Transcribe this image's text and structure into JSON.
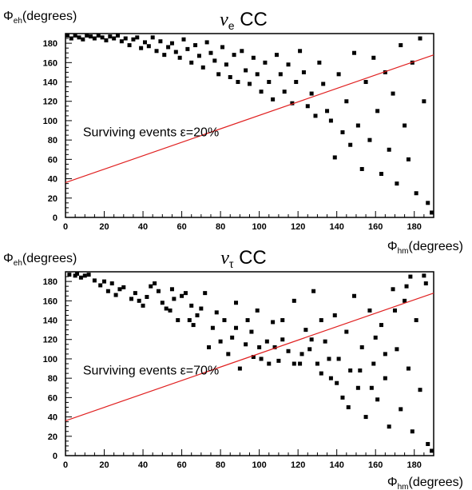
{
  "chart_data": [
    {
      "type": "scatter",
      "title": "ν_e CC",
      "xlabel": "Φ_hm(degrees)",
      "ylabel": "Φ_eh(degrees)",
      "xlim": [
        0,
        190
      ],
      "ylim": [
        0,
        190
      ],
      "x_ticks": [
        0,
        20,
        40,
        60,
        80,
        100,
        120,
        140,
        160,
        180
      ],
      "y_ticks": [
        0,
        20,
        40,
        60,
        80,
        100,
        120,
        140,
        160,
        180
      ],
      "annotation": "Surviving events ε=20%",
      "cut_line": {
        "x": [
          0,
          190
        ],
        "y": [
          36,
          168
        ],
        "color": "#e02020"
      },
      "marker_color": "#000000",
      "series": [
        {
          "points": [
            [
              1,
              188
            ],
            [
              3,
              185
            ],
            [
              5,
              188
            ],
            [
              7,
              186
            ],
            [
              9,
              184
            ],
            [
              11,
              188
            ],
            [
              13,
              187
            ],
            [
              15,
              185
            ],
            [
              17,
              188
            ],
            [
              19,
              186
            ],
            [
              21,
              183
            ],
            [
              23,
              187
            ],
            [
              25,
              185
            ],
            [
              27,
              188
            ],
            [
              29,
              182
            ],
            [
              31,
              185
            ],
            [
              33,
              178
            ],
            [
              35,
              184
            ],
            [
              37,
              186
            ],
            [
              39,
              175
            ],
            [
              41,
              181
            ],
            [
              43,
              177
            ],
            [
              45,
              186
            ],
            [
              47,
              172
            ],
            [
              49,
              182
            ],
            [
              51,
              168
            ],
            [
              53,
              176
            ],
            [
              55,
              180
            ],
            [
              57,
              171
            ],
            [
              59,
              165
            ],
            [
              61,
              184
            ],
            [
              63,
              174
            ],
            [
              65,
              160
            ],
            [
              67,
              178
            ],
            [
              69,
              167
            ],
            [
              71,
              155
            ],
            [
              73,
              181
            ],
            [
              75,
              170
            ],
            [
              77,
              162
            ],
            [
              79,
              148
            ],
            [
              81,
              176
            ],
            [
              83,
              158
            ],
            [
              85,
              145
            ],
            [
              87,
              168
            ],
            [
              89,
              140
            ],
            [
              91,
              172
            ],
            [
              93,
              152
            ],
            [
              95,
              138
            ],
            [
              97,
              165
            ],
            [
              99,
              148
            ],
            [
              101,
              130
            ],
            [
              103,
              160
            ],
            [
              105,
              140
            ],
            [
              107,
              122
            ],
            [
              109,
              168
            ],
            [
              111,
              148
            ],
            [
              113,
              130
            ],
            [
              115,
              158
            ],
            [
              117,
              118
            ],
            [
              119,
              140
            ],
            [
              121,
              172
            ],
            [
              123,
              150
            ],
            [
              125,
              115
            ],
            [
              127,
              128
            ],
            [
              129,
              105
            ],
            [
              131,
              160
            ],
            [
              133,
              138
            ],
            [
              135,
              110
            ],
            [
              137,
              100
            ],
            [
              139,
              62
            ],
            [
              141,
              148
            ],
            [
              143,
              88
            ],
            [
              145,
              120
            ],
            [
              147,
              75
            ],
            [
              149,
              170
            ],
            [
              151,
              95
            ],
            [
              153,
              50
            ],
            [
              155,
              140
            ],
            [
              157,
              80
            ],
            [
              159,
              165
            ],
            [
              161,
              110
            ],
            [
              163,
              45
            ],
            [
              165,
              150
            ],
            [
              167,
              70
            ],
            [
              169,
              128
            ],
            [
              171,
              35
            ],
            [
              173,
              178
            ],
            [
              175,
              95
            ],
            [
              177,
              60
            ],
            [
              179,
              160
            ],
            [
              181,
              25
            ],
            [
              183,
              185
            ],
            [
              185,
              120
            ],
            [
              187,
              15
            ],
            [
              189,
              5
            ]
          ]
        }
      ]
    },
    {
      "type": "scatter",
      "title": "ν_τ CC",
      "xlabel": "Φ_hm(degrees)",
      "ylabel": "Φ_eh(degrees)",
      "xlim": [
        0,
        190
      ],
      "ylim": [
        0,
        190
      ],
      "x_ticks": [
        0,
        20,
        40,
        60,
        80,
        100,
        120,
        140,
        160,
        180
      ],
      "y_ticks": [
        0,
        20,
        40,
        60,
        80,
        100,
        120,
        140,
        160,
        180
      ],
      "annotation": "Surviving events ε=70%",
      "cut_line": {
        "x": [
          0,
          190
        ],
        "y": [
          36,
          168
        ],
        "color": "#e02020"
      },
      "marker_color": "#000000",
      "series": [
        {
          "points": [
            [
              2,
              187
            ],
            [
              5,
              186
            ],
            [
              8,
              184
            ],
            [
              12,
              187
            ],
            [
              15,
              181
            ],
            [
              18,
              176
            ],
            [
              22,
              170
            ],
            [
              26,
              166
            ],
            [
              30,
              174
            ],
            [
              34,
              162
            ],
            [
              38,
              160
            ],
            [
              42,
              164
            ],
            [
              46,
              178
            ],
            [
              50,
              158
            ],
            [
              54,
              150
            ],
            [
              56,
              162
            ],
            [
              58,
              140
            ],
            [
              62,
              168
            ],
            [
              65,
              155
            ],
            [
              68,
              145
            ],
            [
              72,
              168
            ],
            [
              76,
              132
            ],
            [
              78,
              148
            ],
            [
              82,
              140
            ],
            [
              86,
              122
            ],
            [
              88,
              158
            ],
            [
              90,
              90
            ],
            [
              93,
              115
            ],
            [
              96,
              128
            ],
            [
              99,
              150
            ],
            [
              101,
              100
            ],
            [
              104,
              118
            ],
            [
              107,
              138
            ],
            [
              110,
              98
            ],
            [
              112,
              120
            ],
            [
              115,
              108
            ],
            [
              118,
              160
            ],
            [
              121,
              95
            ],
            [
              124,
              130
            ],
            [
              126,
              110
            ],
            [
              128,
              170
            ],
            [
              130,
              95
            ],
            [
              132,
              140
            ],
            [
              134,
              118
            ],
            [
              137,
              80
            ],
            [
              139,
              145
            ],
            [
              141,
              100
            ],
            [
              143,
              60
            ],
            [
              145,
              128
            ],
            [
              147,
              88
            ],
            [
              149,
              165
            ],
            [
              151,
              70
            ],
            [
              153,
              112
            ],
            [
              155,
              40
            ],
            [
              157,
              150
            ],
            [
              159,
              95
            ],
            [
              161,
              58
            ],
            [
              163,
              135
            ],
            [
              165,
              80
            ],
            [
              167,
              30
            ],
            [
              169,
              172
            ],
            [
              171,
              110
            ],
            [
              173,
              48
            ],
            [
              175,
              160
            ],
            [
              177,
              90
            ],
            [
              179,
              25
            ],
            [
              181,
              140
            ],
            [
              183,
              68
            ],
            [
              185,
              186
            ],
            [
              187,
              12
            ],
            [
              189,
              5
            ],
            [
              178,
              185
            ],
            [
              186,
              178
            ],
            [
              176,
              175
            ],
            [
              170,
              150
            ],
            [
              165,
              105
            ],
            [
              160,
              122
            ],
            [
              158,
              70
            ],
            [
              152,
              88
            ],
            [
              146,
              50
            ],
            [
              140,
              75
            ],
            [
              136,
              100
            ],
            [
              132,
              85
            ],
            [
              127,
              120
            ],
            [
              122,
              105
            ],
            [
              118,
              95
            ],
            [
              112,
              140
            ],
            [
              108,
              112
            ],
            [
              105,
              95
            ],
            [
              100,
              112
            ],
            [
              97,
              102
            ],
            [
              94,
              140
            ],
            [
              88,
              132
            ],
            [
              84,
              105
            ],
            [
              80,
              118
            ],
            [
              74,
              112
            ],
            [
              70,
              152
            ],
            [
              66,
              135
            ],
            [
              64,
              140
            ],
            [
              60,
              165
            ],
            [
              55,
              172
            ],
            [
              52,
              152
            ],
            [
              48,
              170
            ],
            [
              44,
              175
            ],
            [
              40,
              155
            ],
            [
              36,
              168
            ],
            [
              28,
              172
            ],
            [
              24,
              178
            ],
            [
              20,
              180
            ],
            [
              10,
              186
            ],
            [
              6,
              188
            ]
          ]
        }
      ]
    }
  ]
}
